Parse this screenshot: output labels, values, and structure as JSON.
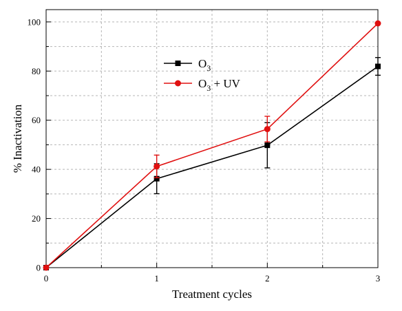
{
  "chart_data": {
    "type": "line",
    "xlabel": "Treatment cycles",
    "ylabel": "% Inactivation",
    "xlim": [
      0,
      3
    ],
    "ylim": [
      0,
      105
    ],
    "x_ticks": [
      "0",
      "1",
      "2",
      "3"
    ],
    "y_ticks": [
      "0",
      "20",
      "40",
      "60",
      "80",
      "100"
    ],
    "x": [
      0,
      1,
      2,
      3
    ],
    "grid": true,
    "legend_position": "top-center",
    "series": [
      {
        "name": "O3",
        "legend_main": "O",
        "legend_sub": "3",
        "legend_suffix": "",
        "color": "#000000",
        "marker": "square",
        "values": [
          0,
          36.2,
          49.8,
          81.9
        ],
        "errors": [
          0,
          6.1,
          9.2,
          3.6
        ]
      },
      {
        "name": "O3 + UV",
        "legend_main": "O",
        "legend_sub": "3",
        "legend_suffix": " + UV",
        "color": "#e01010",
        "marker": "circle",
        "values": [
          0,
          41.2,
          56.4,
          99.4
        ],
        "errors": [
          0,
          4.6,
          5.2,
          0
        ]
      }
    ]
  }
}
